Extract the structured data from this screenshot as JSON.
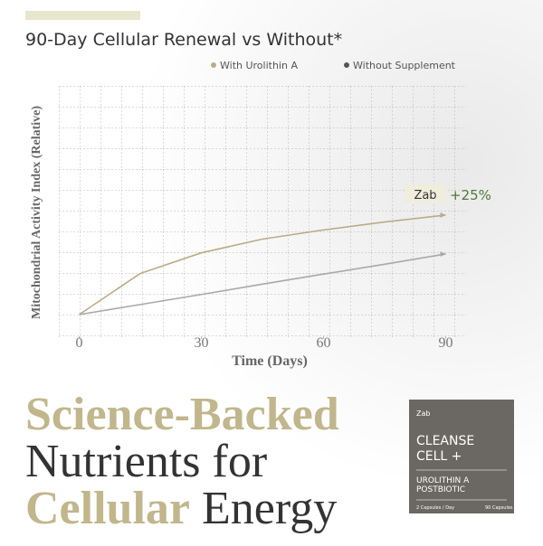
{
  "chart_data": {
    "type": "line",
    "title": "90-Day Cellular Renewal vs Without*",
    "x_label": "Time (Days)",
    "y_label": "Mitochondrial Activity Index (Relative)",
    "x": [
      0,
      15,
      30,
      45,
      60,
      75,
      90
    ],
    "xlim": [
      -5,
      95
    ],
    "xticks": [
      0,
      30,
      60,
      90
    ],
    "ylim": [
      0,
      100
    ],
    "series": [
      {
        "name": "With Urolithin A",
        "color": "#b9ad86",
        "values": [
          0,
          18,
          27,
          33,
          37,
          40.5,
          43.5
        ]
      },
      {
        "name": "Without Supplement",
        "color": "#a9a9a9",
        "legend_color": "#555555",
        "values": [
          0,
          4.4,
          8.8,
          13.3,
          17.7,
          22,
          26.5
        ]
      }
    ],
    "annotation": {
      "badge": "Zab",
      "text": "+25%"
    }
  },
  "headline": {
    "line1": "Science-Backed",
    "line2": "Nutrients for",
    "line3_highlight": "Cellular",
    "line3_rest": "Energy"
  },
  "product": {
    "brand": "Zab",
    "name_line1": "CLEANSE",
    "name_line2": "CELL +",
    "sub_line1": "UROLITHIN A",
    "sub_line2": "POSTBIOTIC",
    "dose": "2 Capsules / Day",
    "count": "90 Capsules"
  }
}
